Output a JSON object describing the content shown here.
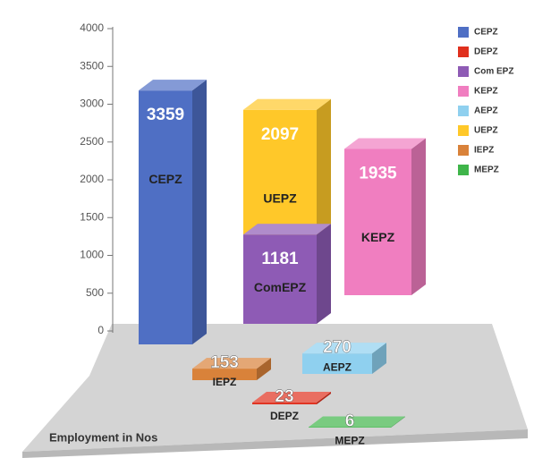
{
  "chart_data": {
    "type": "bar3d",
    "axis_label": "Employment in Nos",
    "ylim": [
      0,
      4000
    ],
    "yticks": [
      0,
      500,
      1000,
      1500,
      2000,
      2500,
      3000,
      3500,
      4000
    ],
    "legend": "right",
    "series": [
      {
        "name": "CEPZ",
        "label": "CEPZ",
        "color": "#4f6fc4",
        "values": [
          3359
        ]
      },
      {
        "name": "DEPZ",
        "label": "DEPZ",
        "color": "#e0301e",
        "values": [
          23
        ]
      },
      {
        "name": "Com EPZ",
        "label": "ComEPZ",
        "color": "#8e5bb5",
        "values": [
          1181
        ]
      },
      {
        "name": "KEPZ",
        "label": "KEPZ",
        "color": "#f07ec0",
        "values": [
          1935
        ]
      },
      {
        "name": "AEPZ",
        "label": "AEPZ",
        "color": "#8fd0ef",
        "values": [
          270
        ]
      },
      {
        "name": "UEPZ",
        "label": "UEPZ",
        "color": "#ffc829",
        "values": [
          2097
        ]
      },
      {
        "name": "IEPZ",
        "label": "IEPZ",
        "color": "#d9823a",
        "values": [
          153
        ]
      },
      {
        "name": "MEPZ",
        "label": "MEPZ",
        "color": "#3fb54a",
        "values": [
          6
        ]
      }
    ]
  }
}
